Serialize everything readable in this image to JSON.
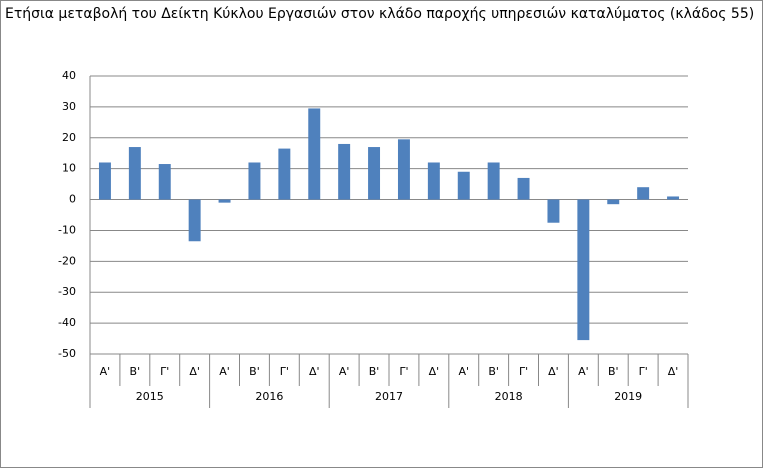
{
  "chart_data": {
    "type": "bar",
    "title": "Ετήσια μεταβολή του Δείκτη Κύκλου Εργασιών στον κλάδο παροχής υπηρεσιών καταλύματος (κλάδος 55)",
    "categories": [
      "Α'",
      "Β'",
      "Γ'",
      "Δ'",
      "Α'",
      "Β'",
      "Γ'",
      "Δ'",
      "Α'",
      "Β'",
      "Γ'",
      "Δ'",
      "Α'",
      "Β'",
      "Γ'",
      "Δ'",
      "Α'",
      "Β'",
      "Γ'",
      "Δ'"
    ],
    "groups": [
      "2015",
      "2016",
      "2017",
      "2018",
      "2019"
    ],
    "values": [
      12,
      17,
      11.5,
      -13.5,
      -1,
      12,
      16.5,
      29.5,
      18,
      17,
      19.5,
      12,
      9,
      12,
      7,
      -7.5,
      -45.5,
      -1.5,
      4,
      1
    ],
    "color": "#4f81bd",
    "ylim": [
      -50,
      40
    ],
    "yticks": [
      -50,
      -40,
      -30,
      -20,
      -10,
      0,
      10,
      20,
      30,
      40
    ],
    "grid": true
  }
}
